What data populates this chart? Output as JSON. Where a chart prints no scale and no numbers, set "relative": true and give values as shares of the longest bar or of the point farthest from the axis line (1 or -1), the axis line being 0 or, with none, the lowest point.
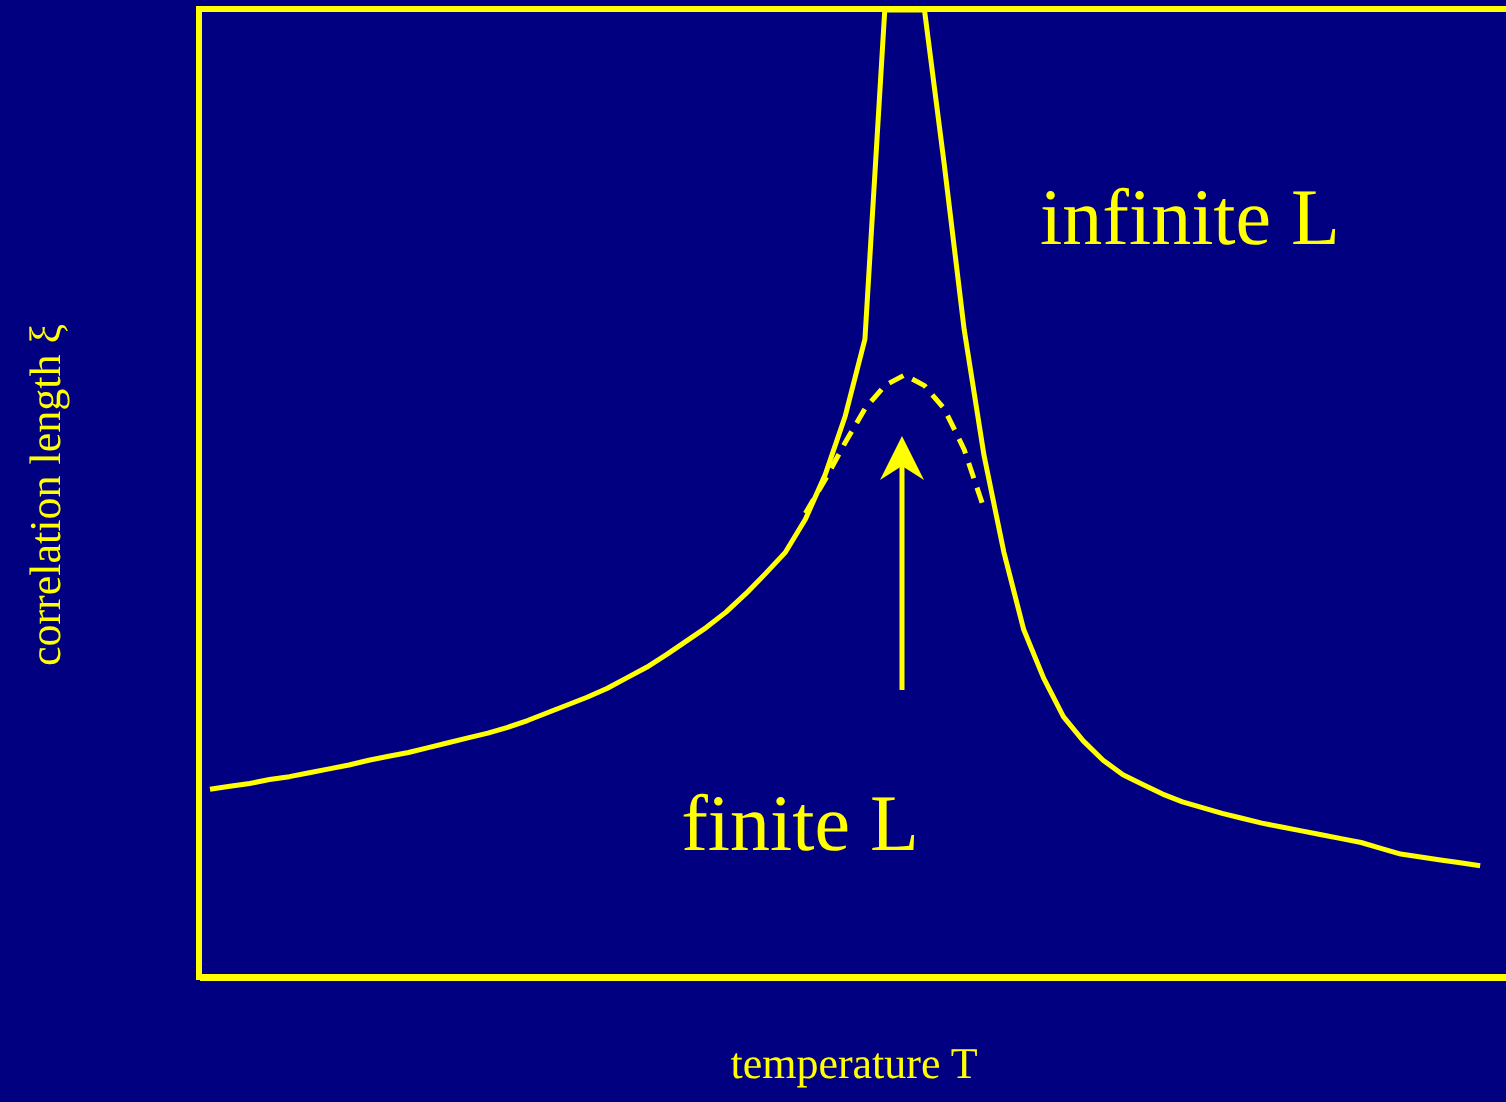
{
  "chart_data": {
    "type": "line",
    "relative": true,
    "xlabel": "temperature T",
    "ylabel": "correlation length ξ",
    "marker": "none",
    "legend": false,
    "grid": false,
    "categories": [
      null,
      null,
      null,
      null,
      null,
      null,
      null,
      null,
      null,
      null,
      null,
      null,
      null,
      null,
      null,
      null,
      null,
      null,
      null,
      null,
      null,
      null,
      null,
      null,
      null,
      null,
      null,
      null,
      null,
      null,
      null,
      null,
      null,
      null,
      null,
      null,
      null,
      null,
      null,
      null,
      null,
      null,
      null,
      null,
      null,
      null,
      null,
      null,
      null,
      null,
      null,
      null,
      null,
      null,
      null,
      null,
      null,
      null,
      null,
      null,
      null,
      null,
      null,
      null,
      null
    ],
    "series": [
      {
        "name": "infinite L",
        "color": "#ffff00",
        "line_style": "solid",
        "values": [
          0.195,
          0.198,
          0.201,
          0.205,
          0.208,
          0.212,
          0.216,
          0.22,
          0.225,
          0.229,
          0.233,
          0.238,
          0.243,
          0.248,
          0.253,
          0.259,
          0.266,
          0.274,
          0.282,
          0.29,
          0.299,
          0.31,
          0.321,
          0.334,
          0.348,
          0.362,
          0.378,
          0.397,
          0.418,
          0.44,
          0.474,
          0.52,
          0.58,
          0.66,
          1,
          1,
          1,
          0.84,
          0.67,
          0.54,
          0.44,
          0.36,
          0.31,
          0.27,
          0.245,
          0.225,
          0.21,
          0.2,
          0.19,
          0.182,
          0.176,
          0.17,
          0.165,
          0.16,
          0.156,
          0.152,
          0.148,
          0.144,
          0.14,
          0.134,
          0.128,
          0.125,
          0.122,
          0.119,
          0.116
        ]
      },
      {
        "name": "finite L",
        "color": "#ffff00",
        "line_style": "dashed",
        "values": [
          null,
          null,
          null,
          null,
          null,
          null,
          null,
          null,
          null,
          null,
          null,
          null,
          null,
          null,
          null,
          null,
          null,
          null,
          null,
          null,
          null,
          null,
          null,
          null,
          null,
          null,
          null,
          null,
          null,
          null,
          0.48,
          0.515,
          0.553,
          0.588,
          0.612,
          0.623,
          0.612,
          0.588,
          0.546,
          0.485,
          null,
          null,
          null,
          null,
          null,
          null,
          null,
          null,
          null,
          null,
          null,
          null,
          null,
          null,
          null,
          null,
          null,
          null,
          null,
          null,
          null,
          null,
          null,
          null,
          null
        ]
      }
    ]
  }
}
